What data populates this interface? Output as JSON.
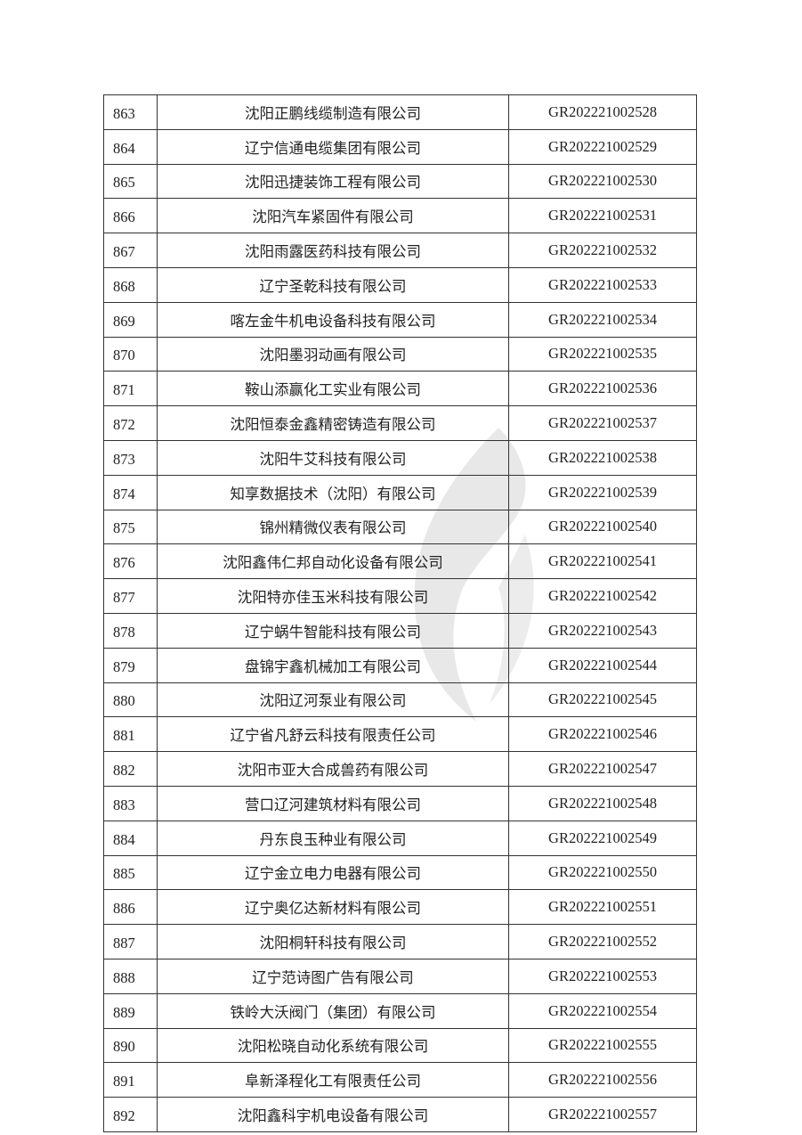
{
  "watermark": {
    "icon": "flame-logo-watermark",
    "color": "#e6e6e6"
  },
  "rows": [
    {
      "no": "863",
      "company": "沈阳正鹏线缆制造有限公司",
      "code": "GR202221002528"
    },
    {
      "no": "864",
      "company": "辽宁信通电缆集团有限公司",
      "code": "GR202221002529"
    },
    {
      "no": "865",
      "company": "沈阳迅捷装饰工程有限公司",
      "code": "GR202221002530"
    },
    {
      "no": "866",
      "company": "沈阳汽车紧固件有限公司",
      "code": "GR202221002531"
    },
    {
      "no": "867",
      "company": "沈阳雨露医药科技有限公司",
      "code": "GR202221002532"
    },
    {
      "no": "868",
      "company": "辽宁圣乾科技有限公司",
      "code": "GR202221002533"
    },
    {
      "no": "869",
      "company": "喀左金牛机电设备科技有限公司",
      "code": "GR202221002534"
    },
    {
      "no": "870",
      "company": "沈阳墨羽动画有限公司",
      "code": "GR202221002535"
    },
    {
      "no": "871",
      "company": "鞍山添赢化工实业有限公司",
      "code": "GR202221002536"
    },
    {
      "no": "872",
      "company": "沈阳恒泰金鑫精密铸造有限公司",
      "code": "GR202221002537"
    },
    {
      "no": "873",
      "company": "沈阳牛艾科技有限公司",
      "code": "GR202221002538"
    },
    {
      "no": "874",
      "company": "知享数据技术（沈阳）有限公司",
      "code": "GR202221002539"
    },
    {
      "no": "875",
      "company": "锦州精微仪表有限公司",
      "code": "GR202221002540"
    },
    {
      "no": "876",
      "company": "沈阳鑫伟仁邦自动化设备有限公司",
      "code": "GR202221002541"
    },
    {
      "no": "877",
      "company": "沈阳特亦佳玉米科技有限公司",
      "code": "GR202221002542"
    },
    {
      "no": "878",
      "company": "辽宁蜗牛智能科技有限公司",
      "code": "GR202221002543"
    },
    {
      "no": "879",
      "company": "盘锦宇鑫机械加工有限公司",
      "code": "GR202221002544"
    },
    {
      "no": "880",
      "company": "沈阳辽河泵业有限公司",
      "code": "GR202221002545"
    },
    {
      "no": "881",
      "company": "辽宁省凡舒云科技有限责任公司",
      "code": "GR202221002546"
    },
    {
      "no": "882",
      "company": "沈阳市亚大合成兽药有限公司",
      "code": "GR202221002547"
    },
    {
      "no": "883",
      "company": "营口辽河建筑材料有限公司",
      "code": "GR202221002548"
    },
    {
      "no": "884",
      "company": "丹东良玉种业有限公司",
      "code": "GR202221002549"
    },
    {
      "no": "885",
      "company": "辽宁金立电力电器有限公司",
      "code": "GR202221002550"
    },
    {
      "no": "886",
      "company": "辽宁奥亿达新材料有限公司",
      "code": "GR202221002551"
    },
    {
      "no": "887",
      "company": "沈阳桐轩科技有限公司",
      "code": "GR202221002552"
    },
    {
      "no": "888",
      "company": "辽宁范诗图广告有限公司",
      "code": "GR202221002553"
    },
    {
      "no": "889",
      "company": "铁岭大沃阀门（集团）有限公司",
      "code": "GR202221002554"
    },
    {
      "no": "890",
      "company": "沈阳松晓自动化系统有限公司",
      "code": "GR202221002555"
    },
    {
      "no": "891",
      "company": "阜新泽程化工有限责任公司",
      "code": "GR202221002556"
    },
    {
      "no": "892",
      "company": "沈阳鑫科宇机电设备有限公司",
      "code": "GR202221002557"
    }
  ]
}
